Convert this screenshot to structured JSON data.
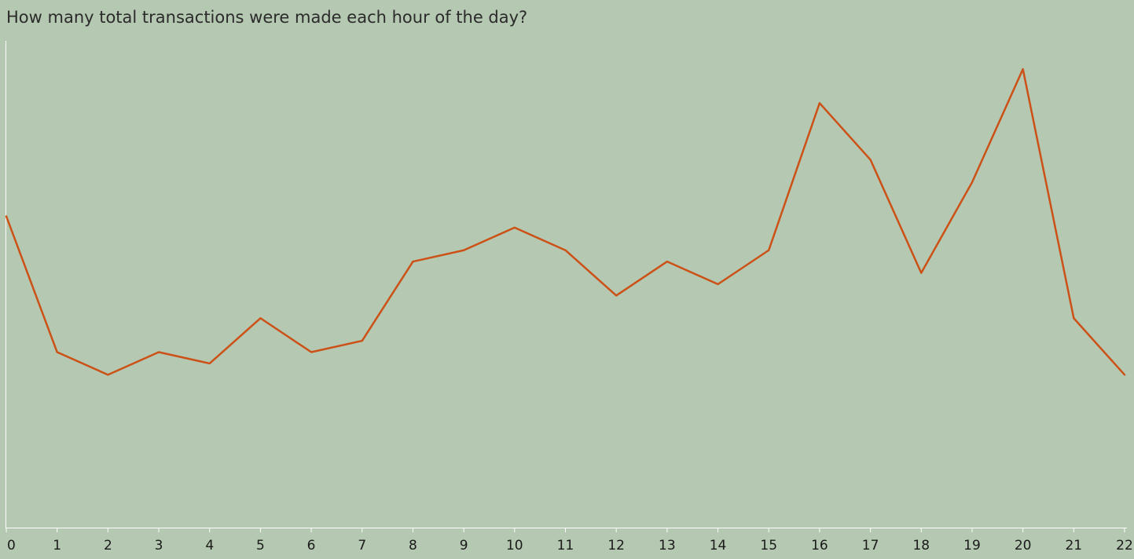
{
  "colors": {
    "background": "#b5c8b1",
    "line": "#cc5117",
    "axis": "#ffffff",
    "text": "#1a1a1a"
  },
  "chart_data": {
    "type": "line",
    "title": "How many total transactions were made each hour of the day?",
    "xlabel": "",
    "ylabel": "",
    "grid": false,
    "x": [
      0,
      1,
      2,
      3,
      4,
      5,
      6,
      7,
      8,
      9,
      10,
      11,
      12,
      13,
      14,
      15,
      16,
      17,
      18,
      19,
      20,
      21,
      22
    ],
    "x_tick_labels": [
      "0",
      "1",
      "2",
      "3",
      "4",
      "5",
      "6",
      "7",
      "8",
      "9",
      "10",
      "11",
      "12",
      "13",
      "14",
      "15",
      "16",
      "17",
      "18",
      "19",
      "20",
      "21",
      "22"
    ],
    "ylim": [
      0,
      43
    ],
    "series": [
      {
        "values": [
          27.5,
          15.5,
          13.5,
          15.5,
          14.5,
          18.5,
          15.5,
          16.5,
          23.5,
          24.5,
          26.5,
          24.5,
          20.5,
          23.5,
          21.5,
          24.5,
          37.5,
          32.5,
          22.5,
          30.5,
          40.5,
          18.5,
          13.5
        ]
      }
    ]
  }
}
